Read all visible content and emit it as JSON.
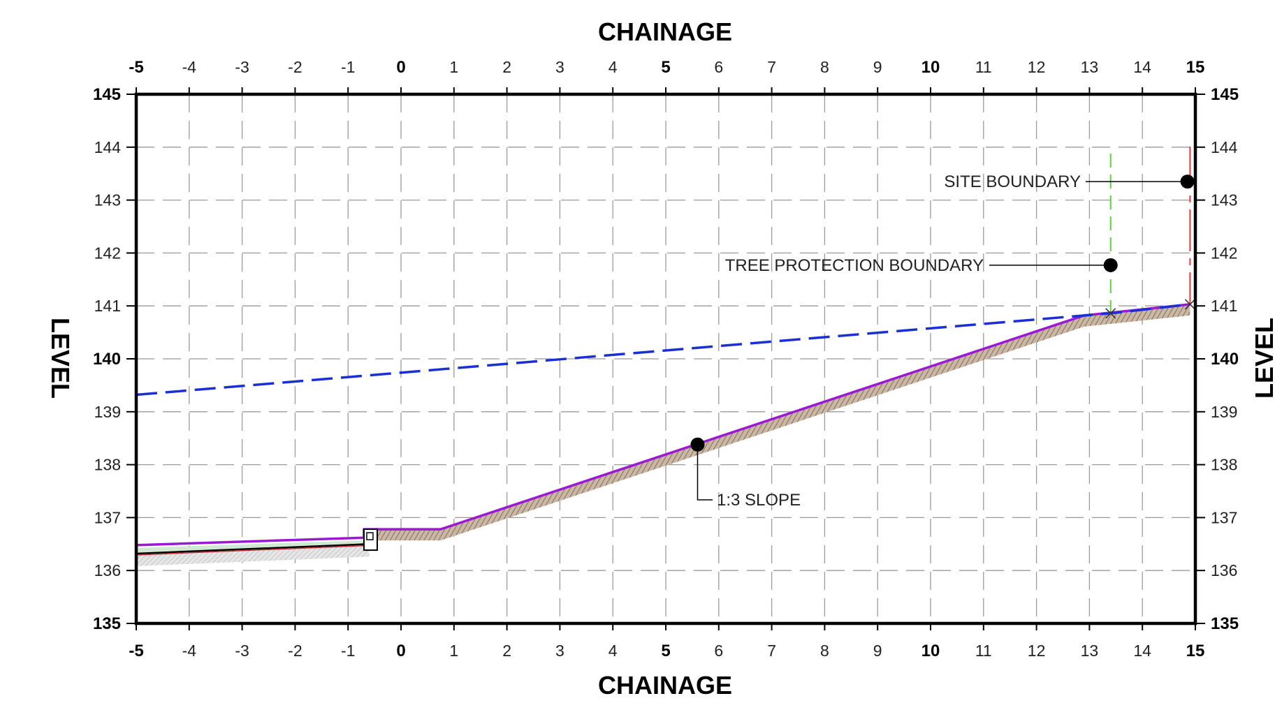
{
  "axes": {
    "x_title_top": "CHAINAGE",
    "x_title_bottom": "CHAINAGE",
    "y_title_left": "LEVEL",
    "y_title_right": "LEVEL",
    "x_ticks": [
      "-5",
      "-4",
      "-3",
      "-2",
      "-1",
      "0",
      "1",
      "2",
      "3",
      "4",
      "5",
      "6",
      "7",
      "8",
      "9",
      "10",
      "11",
      "12",
      "13",
      "14",
      "15"
    ],
    "y_ticks": [
      "145",
      "144",
      "143",
      "142",
      "141",
      "140",
      "139",
      "138",
      "137",
      "136",
      "135"
    ],
    "x_range": [
      -5,
      15
    ],
    "y_range": [
      135,
      145
    ],
    "major_x": [
      "-5",
      "0",
      "5",
      "10",
      "15"
    ],
    "major_y": [
      "145",
      "140",
      "135"
    ],
    "grid": true
  },
  "annotations": {
    "site_boundary": "SITE BOUNDARY",
    "tree_protection": "TREE PROTECTION BOUNDARY",
    "slope": "1:3 SLOPE"
  },
  "profiles": {
    "existing_ground_dashed": [
      [
        -5,
        139.32
      ],
      [
        12.9,
        140.82
      ],
      [
        13.4,
        140.86
      ],
      [
        14.9,
        141.03
      ]
    ],
    "proposed_surface": [
      [
        -5,
        136.48
      ],
      [
        -0.7,
        136.62
      ],
      [
        -0.7,
        136.78
      ],
      [
        0.75,
        136.78
      ],
      [
        12.9,
        140.82
      ],
      [
        14.9,
        141.03
      ]
    ],
    "lower_surface": [
      [
        -5,
        136.32
      ],
      [
        -0.6,
        136.5
      ]
    ],
    "tree_protection_boundary_x": 13.4,
    "site_boundary_x": 14.9,
    "markers": [
      {
        "id": "tree",
        "x": 13.4,
        "y": 141.77
      },
      {
        "id": "site",
        "x": 14.85,
        "y": 143.35
      },
      {
        "id": "slope",
        "x": 5.6,
        "y": 138.38
      }
    ]
  },
  "colors": {
    "existing_ground": "#1a2fd6",
    "proposed_surface": "#9b19d4",
    "hatch": "#a08872",
    "tree_line": "#5ad43a",
    "site_line": "#e23a3a",
    "grid": "#9a9a9a"
  }
}
